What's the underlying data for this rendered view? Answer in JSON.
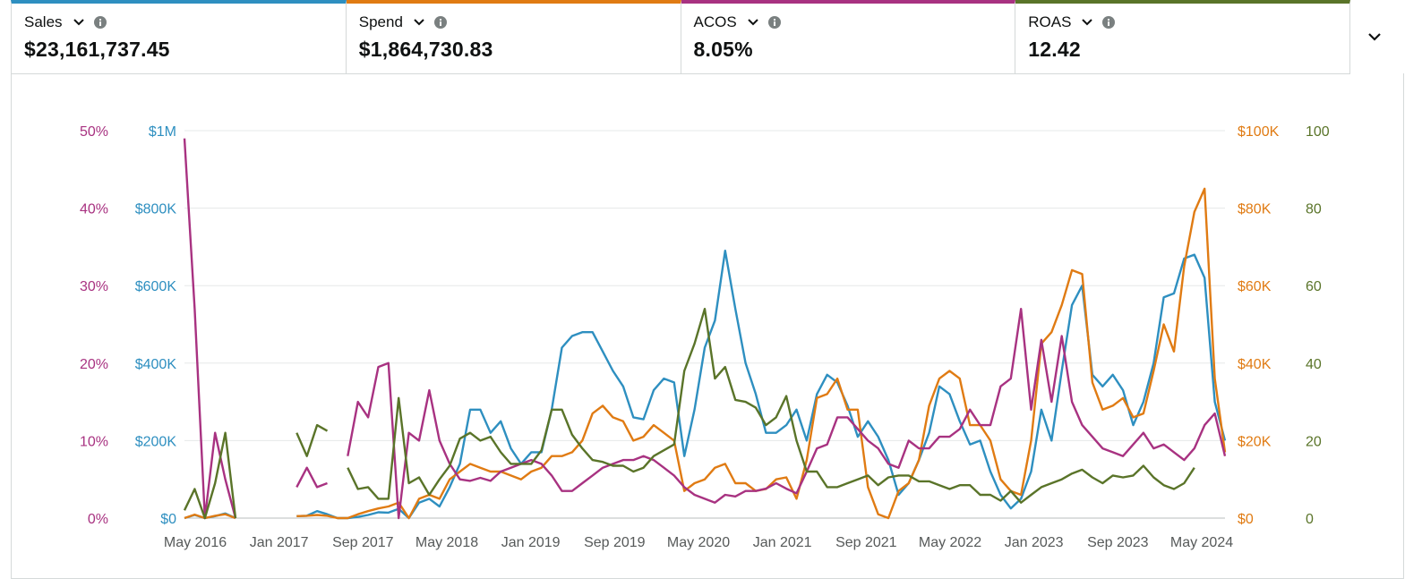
{
  "metrics": [
    {
      "label": "Sales",
      "value": "$23,161,737.45",
      "color": "#2e8fc0"
    },
    {
      "label": "Spend",
      "value": "$1,864,730.83",
      "color": "#e07b13"
    },
    {
      "label": "ACOS",
      "value": "8.05%",
      "color": "#a83281"
    },
    {
      "label": "ROAS",
      "value": "12.42",
      "color": "#5a7429"
    }
  ],
  "chart_data": {
    "type": "line",
    "x_ticks": [
      "May 2016",
      "Jan 2017",
      "Sep 2017",
      "May 2018",
      "Jan 2019",
      "Sep 2019",
      "May 2020",
      "Jan 2021",
      "Sep 2021",
      "May 2022",
      "Jan 2023",
      "Sep 2023",
      "May 2024"
    ],
    "axes": {
      "acos": {
        "ticks": [
          "0%",
          "10%",
          "20%",
          "30%",
          "40%",
          "50%"
        ],
        "min": 0,
        "max": 50,
        "color": "#a83281"
      },
      "sales": {
        "ticks": [
          "$0",
          "$200K",
          "$400K",
          "$600K",
          "$800K",
          "$1M"
        ],
        "min": 0,
        "max": 1000000,
        "color": "#2e8fc0"
      },
      "spend": {
        "ticks": [
          "$0",
          "$20K",
          "$40K",
          "$60K",
          "$80K",
          "$100K"
        ],
        "min": 0,
        "max": 100000,
        "color": "#e07b13"
      },
      "roas": {
        "ticks": [
          "0",
          "20",
          "40",
          "60",
          "80",
          "100"
        ],
        "min": 0,
        "max": 100,
        "color": "#5a7429"
      }
    },
    "series": [
      {
        "name": "Sales",
        "axis": "sales",
        "color": "#2e8fc0",
        "values": [
          0,
          8000,
          0,
          5000,
          12000,
          0,
          null,
          null,
          null,
          null,
          null,
          5000,
          6000,
          18000,
          10000,
          0,
          0,
          3000,
          8000,
          15000,
          14000,
          24000,
          0,
          40000,
          50000,
          30000,
          80000,
          140000,
          280000,
          280000,
          220000,
          250000,
          180000,
          140000,
          170000,
          170000,
          280000,
          440000,
          470000,
          480000,
          480000,
          430000,
          380000,
          340000,
          260000,
          255000,
          330000,
          360000,
          350000,
          160000,
          280000,
          440000,
          510000,
          690000,
          540000,
          400000,
          320000,
          220000,
          220000,
          240000,
          280000,
          200000,
          320000,
          370000,
          350000,
          290000,
          210000,
          250000,
          210000,
          150000,
          60000,
          90000,
          150000,
          220000,
          340000,
          320000,
          250000,
          190000,
          200000,
          120000,
          60000,
          25000,
          50000,
          120000,
          280000,
          200000,
          380000,
          550000,
          600000,
          370000,
          340000,
          370000,
          330000,
          240000,
          300000,
          400000,
          570000,
          580000,
          670000,
          680000,
          620000,
          300000,
          200000
        ]
      },
      {
        "name": "Spend",
        "axis": "spend",
        "color": "#e07b13",
        "values": [
          0,
          900,
          0,
          600,
          1000,
          0,
          null,
          null,
          null,
          null,
          null,
          500,
          600,
          800,
          600,
          0,
          0,
          1000,
          1800,
          2500,
          3000,
          4000,
          0,
          5000,
          6000,
          5000,
          10000,
          12000,
          14000,
          13000,
          12000,
          12000,
          11000,
          10000,
          12000,
          13000,
          16000,
          16000,
          17000,
          20000,
          27000,
          29000,
          26000,
          25000,
          20000,
          21000,
          24000,
          22000,
          20000,
          7000,
          9000,
          10000,
          13000,
          14000,
          9000,
          9000,
          7000,
          7500,
          10000,
          10500,
          5000,
          15000,
          31000,
          32000,
          36000,
          28000,
          28000,
          8000,
          1000,
          0,
          7000,
          9000,
          15000,
          29000,
          36000,
          38000,
          36000,
          24000,
          24000,
          20000,
          10000,
          7000,
          6000,
          20000,
          45000,
          48000,
          55000,
          64000,
          63000,
          35000,
          28000,
          29000,
          31000,
          26000,
          27000,
          38000,
          50000,
          43000,
          65000,
          79000,
          85000,
          36000,
          17000
        ]
      },
      {
        "name": "ACOS",
        "axis": "acos",
        "color": "#a83281",
        "values": [
          49,
          27,
          0,
          11,
          5,
          0,
          null,
          null,
          null,
          null,
          null,
          4,
          6.5,
          4,
          4.5,
          null,
          8,
          15,
          13,
          19.5,
          20,
          0,
          11,
          10,
          16.5,
          10,
          7,
          5,
          4.8,
          5.2,
          4.8,
          6,
          6.5,
          7,
          7.5,
          7,
          5.5,
          3.5,
          3.5,
          4.5,
          5.5,
          6.5,
          7,
          7.5,
          7.5,
          8,
          7.5,
          6.5,
          5.5,
          4,
          3,
          2.5,
          2,
          3,
          2.8,
          3.5,
          3.5,
          3.8,
          4.5,
          3.8,
          3.2,
          6,
          9,
          9.5,
          13,
          13,
          11.5,
          10,
          9,
          7,
          6.5,
          10,
          9,
          9,
          10.5,
          10.5,
          11.5,
          14,
          12,
          12,
          17,
          18,
          27,
          14,
          23,
          15,
          23.5,
          15,
          12,
          10.5,
          9,
          8.5,
          8,
          9.5,
          11,
          9,
          9.5,
          8.5,
          7.5,
          9,
          12,
          13.5,
          8
        ]
      },
      {
        "name": "ROAS",
        "axis": "roas",
        "color": "#5a7429",
        "values": [
          2,
          7.5,
          0,
          9,
          22,
          0,
          null,
          null,
          null,
          null,
          null,
          22,
          16,
          24,
          22.5,
          null,
          13,
          7.5,
          8,
          5,
          5,
          31,
          9,
          10.5,
          6,
          10,
          13.5,
          20.5,
          22,
          20,
          21,
          17,
          14,
          14,
          14,
          17.5,
          28,
          28,
          21.5,
          18,
          15,
          14.5,
          13.5,
          13.5,
          12,
          13,
          16,
          17.5,
          19,
          38,
          45,
          54,
          36,
          39,
          30.5,
          30,
          28.5,
          24,
          26,
          31.5,
          20,
          12,
          12,
          8,
          8,
          9,
          10,
          11,
          8.5,
          10.5,
          11,
          11,
          9.5,
          9.5,
          8.5,
          7.5,
          8.5,
          8.5,
          6,
          6,
          4.5,
          7,
          4,
          6,
          8,
          9,
          10,
          11.5,
          12.5,
          10.5,
          9,
          11,
          10.5,
          11,
          13.5,
          10.5,
          8.5,
          7.5,
          9,
          13
        ]
      }
    ]
  }
}
